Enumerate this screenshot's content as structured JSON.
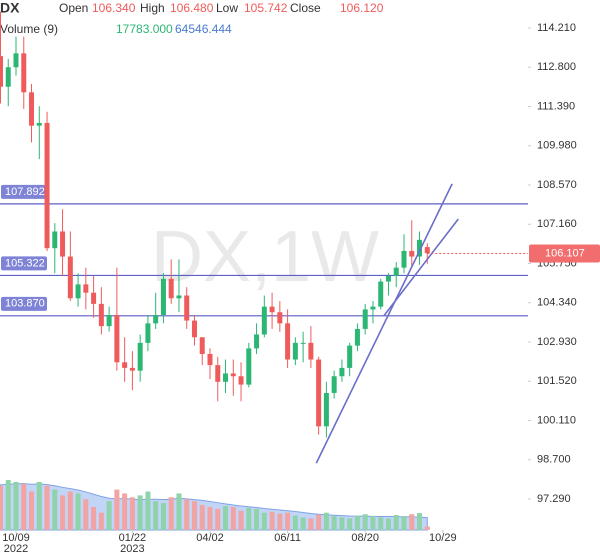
{
  "chart_data": {
    "type": "candlestick",
    "header": {
      "symbol": "DX",
      "open_label": "Open",
      "open": "106.340",
      "high_label": "High",
      "high": "106.480",
      "low_label": "Low",
      "low": "105.742",
      "close_label": "Close",
      "close": "106.120",
      "volume_label": "Volume (9)",
      "volume": "17783.000",
      "volume_ma": "64546.444"
    },
    "watermark": "DX,1W",
    "up_color": "#2bb673",
    "down_color": "#ef5b5b",
    "volume_up_color": "#8fd3ab",
    "volume_down_color": "#f2a3a3",
    "volume_ma_color": "#a9c3f2",
    "level_color": "#5b5fc7",
    "open": [
      113.2,
      112.1,
      112.8,
      113.3,
      111.9,
      110.7,
      110.8,
      106.3,
      106.9,
      106.0,
      104.5,
      105.0,
      104.7,
      104.3,
      103.5,
      103.9,
      102.2,
      102.0,
      101.9,
      102.9,
      103.6,
      103.9,
      105.2,
      104.5,
      104.6,
      103.7,
      103.1,
      102.5,
      102.1,
      101.5,
      101.8,
      101.7,
      101.4,
      102.7,
      103.2,
      104.2,
      104.0,
      103.6,
      102.3,
      102.9,
      102.9,
      102.3,
      99.9,
      101.1,
      101.7,
      102.0,
      102.8,
      103.4,
      104.1,
      104.2,
      105.1,
      105.3,
      105.6,
      106.2,
      106.0,
      106.34
    ],
    "high": [
      114.8,
      113.1,
      113.9,
      113.9,
      112.2,
      111.4,
      111.2,
      107.2,
      107.7,
      106.9,
      105.4,
      105.6,
      105.3,
      104.9,
      104.2,
      105.6,
      103.1,
      102.6,
      103.2,
      103.9,
      104.7,
      105.4,
      105.9,
      105.9,
      104.9,
      103.9,
      103.1,
      102.7,
      102.4,
      102.3,
      102.3,
      102.2,
      102.9,
      103.6,
      104.6,
      104.7,
      104.4,
      104.1,
      103.1,
      103.3,
      103.5,
      102.4,
      101.5,
      101.9,
      102.3,
      102.9,
      103.6,
      104.3,
      104.4,
      105.2,
      105.4,
      105.8,
      106.8,
      107.3,
      106.9,
      106.48
    ],
    "low": [
      111.5,
      111.4,
      112.5,
      111.3,
      110.1,
      109.5,
      106.2,
      105.4,
      105.3,
      104.4,
      104.2,
      104.1,
      103.8,
      103.2,
      103.3,
      101.9,
      101.5,
      101.2,
      101.5,
      102.6,
      103.4,
      103.6,
      104.3,
      104.0,
      103.4,
      102.8,
      102.1,
      101.6,
      100.8,
      101.1,
      101.0,
      100.8,
      101.3,
      102.5,
      103.1,
      103.4,
      103.3,
      102.0,
      102.1,
      102.2,
      102.0,
      99.6,
      99.5,
      100.9,
      101.5,
      101.7,
      102.6,
      103.2,
      103.6,
      104.1,
      104.6,
      104.9,
      105.4,
      105.6,
      105.7,
      105.742
    ],
    "close": [
      112.1,
      112.8,
      113.3,
      111.9,
      110.7,
      110.8,
      106.3,
      106.9,
      106.0,
      104.5,
      105.0,
      104.7,
      104.3,
      103.5,
      103.9,
      102.2,
      102.0,
      101.9,
      102.9,
      103.6,
      103.9,
      105.2,
      104.5,
      104.6,
      103.7,
      103.1,
      102.5,
      102.1,
      101.5,
      101.8,
      101.7,
      101.4,
      102.7,
      103.2,
      104.2,
      104.0,
      103.6,
      102.3,
      102.9,
      102.9,
      102.3,
      99.9,
      101.1,
      101.7,
      102.0,
      102.8,
      103.4,
      104.1,
      104.2,
      105.1,
      105.3,
      105.6,
      106.2,
      106.0,
      106.6,
      106.12
    ],
    "volume": [
      230000,
      260000,
      250000,
      240000,
      200000,
      250000,
      230000,
      210000,
      180000,
      200000,
      190000,
      160000,
      120000,
      90000,
      150000,
      210000,
      190000,
      170000,
      180000,
      200000,
      150000,
      140000,
      170000,
      190000,
      160000,
      150000,
      130000,
      120000,
      110000,
      125000,
      120000,
      100000,
      115000,
      110000,
      90000,
      95000,
      85000,
      90000,
      75000,
      65000,
      60000,
      80000,
      90000,
      72000,
      66000,
      60000,
      75000,
      82000,
      72000,
      66000,
      60000,
      78000,
      72000,
      82000,
      88000,
      17783
    ],
    "volume_ma": [
      235000,
      238000,
      240000,
      241000,
      238000,
      240000,
      236000,
      230000,
      222000,
      215000,
      208000,
      198000,
      186000,
      174000,
      165000,
      162000,
      164000,
      160000,
      158000,
      160000,
      160000,
      158000,
      160000,
      165000,
      162000,
      158000,
      154000,
      148000,
      142000,
      136000,
      130000,
      125000,
      121000,
      117000,
      112000,
      108000,
      104000,
      100000,
      96000,
      91000,
      86000,
      82000,
      79000,
      77000,
      75000,
      73000,
      72000,
      71500,
      71000,
      70500,
      70000,
      69500,
      69000,
      68000,
      67000,
      64546.444
    ],
    "ylim": [
      96.5,
      114.8
    ],
    "yticks": [
      {
        "value": 114.21,
        "label": "114.210"
      },
      {
        "value": 112.8,
        "label": "112.800"
      },
      {
        "value": 111.39,
        "label": "111.390"
      },
      {
        "value": 109.98,
        "label": "109.980"
      },
      {
        "value": 108.57,
        "label": "108.570"
      },
      {
        "value": 107.16,
        "label": "107.160"
      },
      {
        "value": 105.75,
        "label": "105.750"
      },
      {
        "value": 104.34,
        "label": "104.340"
      },
      {
        "value": 102.93,
        "label": "102.930"
      },
      {
        "value": 101.52,
        "label": "101.520"
      },
      {
        "value": 100.11,
        "label": "100.110"
      },
      {
        "value": 98.7,
        "label": "98.700"
      },
      {
        "value": 97.29,
        "label": "97.290"
      }
    ],
    "xticks": [
      {
        "value": 2,
        "label": "10/09",
        "year": "2022"
      },
      {
        "value": 17,
        "label": "01/22",
        "year": "2023"
      },
      {
        "value": 27,
        "label": "04/02"
      },
      {
        "value": 37,
        "label": "06/11"
      },
      {
        "value": 47,
        "label": "08/20"
      },
      {
        "value": 57,
        "label": "10/29"
      }
    ],
    "levels": [
      {
        "value": 107.892,
        "label": "107.892"
      },
      {
        "value": 105.322,
        "label": "105.322"
      },
      {
        "value": 103.87,
        "label": "103.870"
      }
    ],
    "last_price": {
      "value": 106.107,
      "label": "106.107"
    },
    "trendlines": [
      {
        "x": [
          40.7,
          58.2
        ],
        "y": [
          98.58,
          108.61
        ]
      },
      {
        "x": [
          49.4,
          59.0
        ],
        "y": [
          103.87,
          107.35
        ]
      }
    ]
  }
}
